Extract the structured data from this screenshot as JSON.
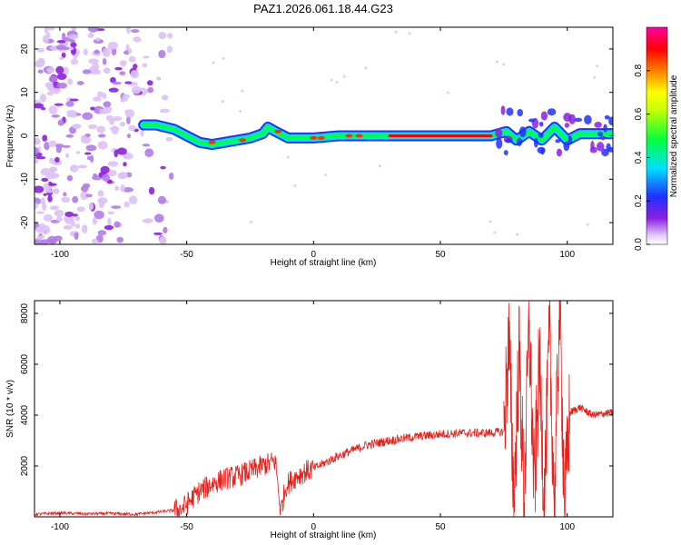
{
  "title": "PAZ1.2026.061.18.44.G23",
  "chart_data": [
    {
      "type": "heatmap",
      "xlabel": "Height of straight line (km)",
      "ylabel": "Frequency (Hz)",
      "xlim": [
        -110,
        118
      ],
      "ylim": [
        -25,
        25
      ],
      "x_ticks": [
        -100,
        -50,
        0,
        50,
        100
      ],
      "y_ticks": [
        -20,
        -10,
        0,
        10,
        20
      ],
      "colorbar": {
        "label": "Normalized spectral amplitude",
        "range": [
          0,
          1
        ],
        "ticks": [
          0.0,
          0.2,
          0.4,
          0.6,
          0.8
        ],
        "colormap": [
          "#ffffff",
          "#d9b8f5",
          "#8c1fe0",
          "#2030ff",
          "#00e0ff",
          "#00ff40",
          "#c8ff00",
          "#ffff00",
          "#ff8000",
          "#ff0000",
          "#ff00a0"
        ]
      },
      "ridge": {
        "description_x": [
          -67,
          -62,
          -55,
          -50,
          -45,
          -40,
          -35,
          -30,
          -25,
          -20,
          -18,
          -15,
          -10,
          -5,
          0,
          10,
          20,
          30,
          40,
          50,
          60,
          70,
          73,
          76,
          80,
          85,
          90,
          95,
          100,
          105,
          110,
          118
        ],
        "frequency": [
          2.5,
          2.5,
          1.5,
          0,
          -1.5,
          -2,
          -1.5,
          -1,
          -0.5,
          0.5,
          2,
          1,
          -0.5,
          -0.5,
          -0.5,
          0,
          0,
          0,
          0,
          0,
          0,
          0,
          0.5,
          1,
          -1,
          1,
          -1,
          2,
          -1,
          0.5,
          0.5,
          0.5
        ]
      },
      "noise_region_x": [
        -110,
        -55
      ]
    },
    {
      "type": "line",
      "xlabel": "Height of straight line (km)",
      "ylabel": "SNR (10 * v/v)",
      "xlim": [
        -110,
        118
      ],
      "ylim": [
        0,
        8500
      ],
      "x_ticks": [
        -100,
        -50,
        0,
        50,
        100
      ],
      "y_ticks": [
        2000,
        4000,
        6000,
        8000
      ],
      "color": "#e8201c",
      "series": [
        {
          "x": [
            -110,
            -100,
            -90,
            -80,
            -70,
            -60,
            -52,
            -48,
            -45,
            -40,
            -35,
            -30,
            -25,
            -20,
            -15,
            -13,
            -11,
            -8,
            -5,
            0,
            10,
            20,
            30,
            40,
            50,
            60,
            70,
            75
          ],
          "values": [
            100,
            150,
            120,
            130,
            100,
            200,
            300,
            700,
            1000,
            1300,
            1500,
            1600,
            1800,
            2000,
            2200,
            200,
            1200,
            1500,
            1700,
            1900,
            2400,
            2800,
            3000,
            3150,
            3250,
            3300,
            3300,
            3350
          ]
        },
        {
          "x": [
            75,
            77,
            79,
            81,
            83,
            85,
            87,
            89,
            91,
            93,
            95,
            97,
            99,
            101,
            105,
            110,
            118
          ],
          "values": [
            3300,
            7000,
            500,
            6500,
            800,
            7500,
            1000,
            6000,
            800,
            7000,
            500,
            8500,
            400,
            4100,
            4300,
            4000,
            4100
          ]
        }
      ]
    }
  ]
}
